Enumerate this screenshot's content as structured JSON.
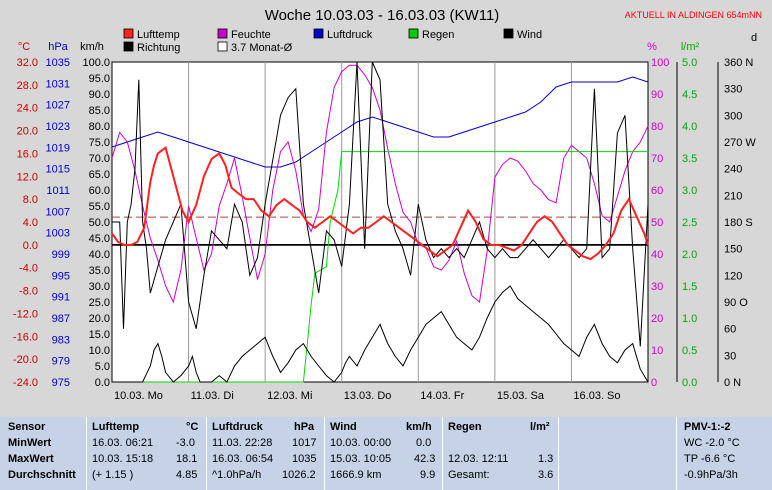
{
  "chart_data": {
    "type": "line",
    "title": "Woche 10.03.03 - 16.03.03 (KW11)",
    "subtitle": "AKTUELL IN ALDINGEN 654mNN",
    "legend": [
      {
        "name": "Lufttemp",
        "color": "#ff2020",
        "axis": "temp"
      },
      {
        "name": "Feuchte",
        "color": "#cc00cc",
        "axis": "pct"
      },
      {
        "name": "Luftdruck",
        "color": "#0000cc",
        "axis": "hpa"
      },
      {
        "name": "Regen",
        "color": "#00cc00",
        "axis": "rain"
      },
      {
        "name": "Wind",
        "color": "#000000",
        "axis": "kmh"
      },
      {
        "name": "Richtung",
        "color": "#000000",
        "axis": "dir"
      },
      {
        "name": "3.7 Monat-Ø",
        "color": "#ffffff",
        "axis": "temp"
      }
    ],
    "axes": {
      "temp": {
        "unit": "°C",
        "min": -24,
        "max": 32,
        "ticks": [
          "32.0",
          "28.0",
          "24.0",
          "20.0",
          "16.0",
          "12.0",
          "8.0",
          "4.0",
          "0.0",
          "-4.0",
          "-8.0",
          "-12.0",
          "-16.0",
          "-20.0",
          "-24.0"
        ],
        "color": "#cc0000"
      },
      "hpa": {
        "unit": "hPa",
        "min": 975,
        "max": 1039,
        "ticks": [
          "1035",
          "1031",
          "1027",
          "1023",
          "1019",
          "1015",
          "1011",
          "1007",
          "1003",
          "999",
          "995",
          "991",
          "987",
          "983",
          "979",
          "975"
        ],
        "color": "#0000cc"
      },
      "kmh": {
        "unit": "km/h",
        "min": 0,
        "max": 100,
        "ticks": [
          "100.0",
          "95.0",
          "90.0",
          "85.0",
          "80.0",
          "75.0",
          "70.0",
          "65.0",
          "60.0",
          "55.0",
          "50.0",
          "45.0",
          "40.0",
          "35.0",
          "30.0",
          "25.0",
          "20.0",
          "15.0",
          "10.0",
          "5.0",
          "0.0"
        ],
        "color": "#000000"
      },
      "pct": {
        "unit": "%",
        "min": 0,
        "max": 100,
        "ticks": [
          "100",
          "90",
          "80",
          "70",
          "60",
          "50",
          "40",
          "30",
          "20",
          "10",
          "0"
        ],
        "color": "#cc00cc"
      },
      "rain": {
        "unit": "l/m²",
        "min": 0,
        "max": 5,
        "ticks": [
          "5.0",
          "4.5",
          "4.0",
          "3.5",
          "3.0",
          "2.5",
          "2.0",
          "1.5",
          "1.0",
          "0.5",
          "0.0"
        ],
        "color": "#00aa00"
      },
      "dir": {
        "unit": "d",
        "min": 0,
        "max": 360,
        "ticks": [
          "360 N",
          "330",
          "300",
          "270 W",
          "240",
          "210",
          "180 S",
          "150",
          "120",
          "90 O",
          "60",
          "30",
          "0 N"
        ],
        "color": "#000000"
      }
    },
    "x_ticks": [
      "10.03. Mo",
      "11.03. Di",
      "12.03. Mi",
      "13.03. Do",
      "14.03. Fr",
      "15.03. Sa",
      "16.03. So"
    ],
    "x_range": [
      0,
      7
    ],
    "reference_lines": {
      "monthly_avg_temp": 4.85,
      "zero_temp": 0.0
    },
    "series": {
      "Lufttemp": {
        "x": [
          0,
          0.08,
          0.16,
          0.25,
          0.33,
          0.42,
          0.5,
          0.55,
          0.6,
          0.7,
          0.8,
          0.92,
          1.0,
          1.1,
          1.2,
          1.3,
          1.4,
          1.48,
          1.56,
          1.65,
          1.75,
          1.85,
          1.95,
          2.05,
          2.15,
          2.25,
          2.35,
          2.45,
          2.55,
          2.65,
          2.75,
          2.85,
          2.95,
          3.05,
          3.15,
          3.25,
          3.35,
          3.45,
          3.55,
          3.65,
          3.75,
          3.85,
          3.95,
          4.05,
          4.15,
          4.25,
          4.35,
          4.45,
          4.55,
          4.65,
          4.75,
          4.85,
          4.95,
          5.05,
          5.15,
          5.25,
          5.35,
          5.45,
          5.55,
          5.65,
          5.75,
          5.85,
          5.95,
          6.05,
          6.15,
          6.25,
          6.35,
          6.45,
          6.55,
          6.65,
          6.75,
          6.85,
          6.95,
          7.0
        ],
        "y": [
          2,
          0.5,
          0,
          0,
          0.5,
          3,
          11,
          14,
          16,
          17,
          12,
          6,
          4,
          7,
          12,
          15,
          16,
          14,
          10,
          9,
          8,
          8,
          6,
          5,
          7,
          8,
          7,
          6,
          4,
          3,
          4,
          5,
          4,
          3,
          2,
          3,
          3,
          4,
          5,
          4,
          3,
          2,
          1,
          0,
          -1,
          -2,
          -1,
          0,
          3,
          6,
          4,
          1,
          0,
          0,
          -0.5,
          -1,
          0,
          2,
          4,
          5,
          4,
          2,
          0,
          -1,
          -2,
          -2.5,
          -1.5,
          0,
          2,
          6,
          8,
          5,
          2,
          0
        ]
      },
      "Feuchte": {
        "x": [
          0,
          0.1,
          0.2,
          0.3,
          0.4,
          0.5,
          0.6,
          0.7,
          0.8,
          0.9,
          1.0,
          1.1,
          1.2,
          1.3,
          1.4,
          1.5,
          1.6,
          1.7,
          1.8,
          1.9,
          2.0,
          2.1,
          2.2,
          2.3,
          2.4,
          2.5,
          2.6,
          2.7,
          2.8,
          2.9,
          3.0,
          3.1,
          3.2,
          3.3,
          3.4,
          3.5,
          3.6,
          3.7,
          3.8,
          3.9,
          4.0,
          4.1,
          4.2,
          4.3,
          4.4,
          4.5,
          4.6,
          4.7,
          4.8,
          4.9,
          5.0,
          5.1,
          5.2,
          5.3,
          5.4,
          5.5,
          5.6,
          5.7,
          5.8,
          5.9,
          6.0,
          6.1,
          6.2,
          6.3,
          6.4,
          6.5,
          6.6,
          6.7,
          6.8,
          6.9,
          7.0
        ],
        "y": [
          70,
          78,
          75,
          66,
          55,
          45,
          38,
          30,
          25,
          35,
          55,
          45,
          35,
          40,
          55,
          62,
          70,
          58,
          45,
          32,
          40,
          60,
          72,
          75,
          66,
          52,
          47,
          54,
          78,
          92,
          97,
          99,
          99,
          96,
          92,
          85,
          73,
          62,
          53,
          50,
          43,
          42,
          36,
          35,
          38,
          44,
          34,
          27,
          25,
          41,
          64,
          68,
          70,
          69,
          66,
          62,
          60,
          57,
          56,
          70,
          74,
          72,
          70,
          62,
          52,
          50,
          58,
          66,
          72,
          75,
          80
        ]
      },
      "Luftdruck": {
        "x": [
          0,
          0.2,
          0.4,
          0.6,
          0.8,
          1.0,
          1.2,
          1.4,
          1.6,
          1.8,
          2.0,
          2.2,
          2.4,
          2.6,
          2.8,
          3.0,
          3.2,
          3.4,
          3.6,
          3.8,
          4.0,
          4.2,
          4.4,
          4.6,
          4.8,
          5.0,
          5.2,
          5.4,
          5.6,
          5.8,
          6.0,
          6.2,
          6.4,
          6.6,
          6.8,
          7.0
        ],
        "y": [
          1022,
          1023,
          1024,
          1025,
          1024,
          1023,
          1022,
          1021,
          1020,
          1019,
          1018,
          1018,
          1019,
          1021,
          1023,
          1025,
          1027,
          1028,
          1027,
          1026,
          1025,
          1024,
          1024,
          1025,
          1026,
          1027,
          1028,
          1029,
          1031,
          1034,
          1035,
          1035,
          1035,
          1035,
          1036,
          1035
        ]
      },
      "Regen": {
        "x": [
          0,
          2.5,
          2.55,
          2.6,
          2.65,
          2.8,
          2.85,
          2.95,
          3.0,
          3.05,
          7.0
        ],
        "y": [
          0,
          0,
          0.6,
          1.2,
          1.7,
          1.8,
          2.5,
          3.0,
          3.6,
          3.6,
          3.6
        ]
      },
      "Wind": {
        "x": [
          0,
          0.1,
          0.2,
          0.3,
          0.4,
          0.5,
          0.55,
          0.6,
          0.65,
          0.7,
          0.8,
          0.9,
          1.0,
          1.05,
          1.1,
          1.15,
          1.2,
          1.3,
          1.4,
          1.5,
          1.6,
          1.7,
          1.8,
          1.9,
          2.0,
          2.1,
          2.2,
          2.3,
          2.4,
          2.5,
          2.6,
          2.7,
          2.8,
          2.9,
          3.0,
          3.05,
          3.1,
          3.2,
          3.3,
          3.4,
          3.5,
          3.6,
          3.7,
          3.8,
          3.9,
          4.0,
          4.1,
          4.2,
          4.3,
          4.4,
          4.5,
          4.6,
          4.7,
          4.8,
          4.9,
          5.0,
          5.1,
          5.2,
          5.3,
          5.4,
          5.5,
          5.6,
          5.7,
          5.8,
          5.9,
          6.0,
          6.1,
          6.2,
          6.3,
          6.4,
          6.5,
          6.6,
          6.7,
          6.8,
          6.9,
          7.0
        ],
        "y": [
          0,
          0,
          0,
          0,
          0,
          5,
          10,
          12,
          8,
          3,
          0,
          2,
          5,
          8,
          3,
          0,
          0,
          0,
          2,
          0,
          5,
          8,
          10,
          12,
          14,
          8,
          3,
          6,
          10,
          12,
          8,
          5,
          2,
          0,
          3,
          6,
          8,
          5,
          10,
          14,
          18,
          12,
          8,
          5,
          10,
          14,
          18,
          20,
          22,
          18,
          14,
          12,
          10,
          14,
          20,
          25,
          28,
          30,
          26,
          24,
          22,
          20,
          18,
          15,
          12,
          10,
          8,
          14,
          18,
          12,
          8,
          6,
          10,
          12,
          4,
          0
        ]
      },
      "Richtung": {
        "x": [
          0,
          0.1,
          0.15,
          0.2,
          0.25,
          0.3,
          0.35,
          0.4,
          0.45,
          0.5,
          0.6,
          0.7,
          0.8,
          0.9,
          1.0,
          1.1,
          1.2,
          1.3,
          1.4,
          1.5,
          1.6,
          1.7,
          1.8,
          1.9,
          2.0,
          2.1,
          2.2,
          2.3,
          2.4,
          2.5,
          2.6,
          2.7,
          2.8,
          2.9,
          3.0,
          3.1,
          3.2,
          3.3,
          3.4,
          3.5,
          3.6,
          3.7,
          3.8,
          3.9,
          4.0,
          4.1,
          4.2,
          4.3,
          4.4,
          4.5,
          4.6,
          4.7,
          4.8,
          4.9,
          5.0,
          5.1,
          5.2,
          5.3,
          5.4,
          5.5,
          5.6,
          5.7,
          5.8,
          5.9,
          6.0,
          6.1,
          6.2,
          6.3,
          6.4,
          6.5,
          6.6,
          6.7,
          6.8,
          6.9,
          7.0
        ],
        "y": [
          180,
          180,
          60,
          180,
          200,
          240,
          340,
          180,
          150,
          100,
          130,
          160,
          180,
          200,
          90,
          60,
          120,
          170,
          160,
          150,
          200,
          180,
          120,
          140,
          200,
          250,
          300,
          320,
          330,
          200,
          150,
          100,
          170,
          160,
          130,
          200,
          360,
          150,
          360,
          340,
          200,
          170,
          150,
          120,
          200,
          160,
          140,
          150,
          140,
          150,
          140,
          160,
          180,
          150,
          140,
          150,
          140,
          140,
          150,
          160,
          150,
          140,
          150,
          160,
          150,
          140,
          150,
          330,
          140,
          150,
          280,
          300,
          150,
          40,
          200
        ]
      }
    }
  },
  "stats": {
    "headers": {
      "sensor": "Sensor",
      "lufttemp": "Lufttemp",
      "lufttemp_unit": "°C",
      "luftdruck": "Luftdruck",
      "luftdruck_unit": "hPa",
      "wind": "Wind",
      "wind_unit": "km/h",
      "regen": "Regen",
      "regen_unit": "l/m²",
      "pmv": "PMV-1:-2"
    },
    "labels": [
      "MinWert",
      "MaxWert",
      "Durchschnitt"
    ],
    "lufttemp": [
      [
        "16.03.  06:21",
        "-3.0"
      ],
      [
        "10.03.  15:18",
        "18.1"
      ],
      [
        "(+ 1.15 )",
        "4.85"
      ]
    ],
    "luftdruck": [
      [
        "11.03.  22:28",
        "1017"
      ],
      [
        "16.03.  06:54",
        "1035"
      ],
      [
        "^1.0hPa/h",
        "1026.2"
      ]
    ],
    "wind": [
      [
        "10.03.  00:00",
        "0.0"
      ],
      [
        "15.03.  10:05",
        "42.3"
      ],
      [
        "1666.9 km",
        "9.9"
      ]
    ],
    "regen": [
      [
        "",
        ""
      ],
      [
        "12.03.  12:11",
        "1.3"
      ],
      [
        "Gesamt:",
        "3.6"
      ]
    ],
    "pmv": [
      "WC -2.0 °C",
      "TP -6.6 °C",
      "-0.9hPa/3h"
    ]
  }
}
